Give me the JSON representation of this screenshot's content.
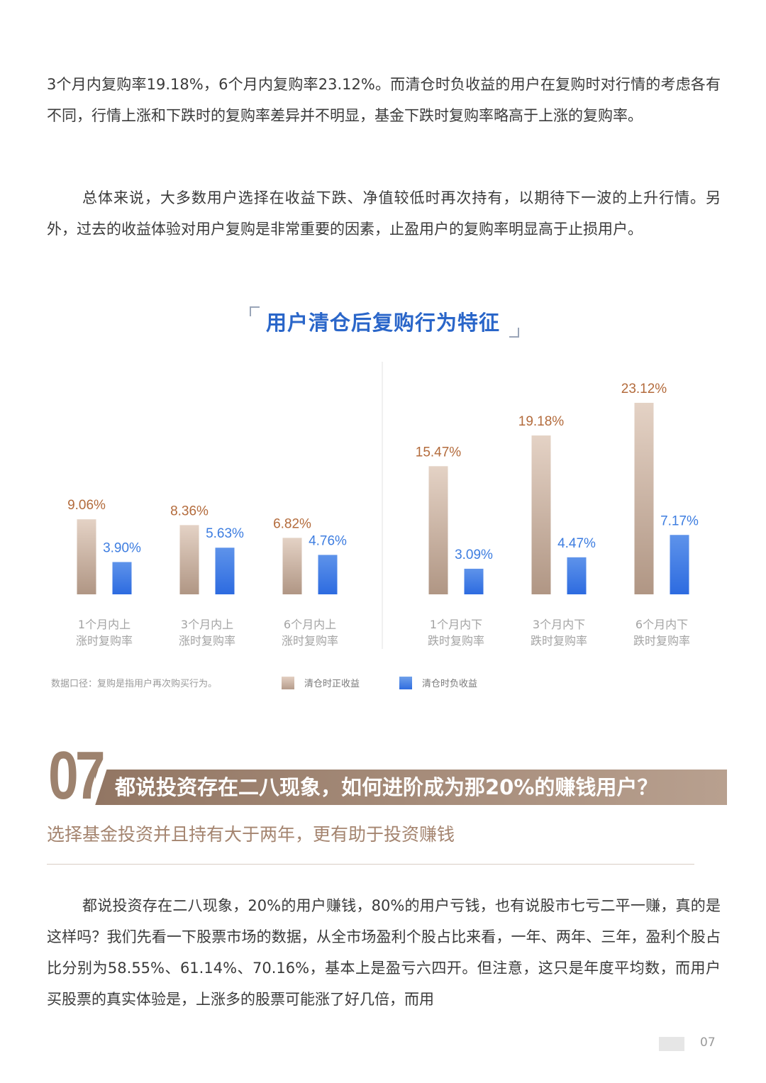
{
  "paragraphs": {
    "p1": "3个月内复购率19.18%，6个月内复购率23.12%。而清仓时负收益的用户在复购时对行情的考虑各有不同，行情上涨和下跌时的复购率差异并不明显，基金下跌时复购率略高于上涨的复购率。",
    "p2": "总体来说，大多数用户选择在收益下跌、净值较低时再次持有，以期待下一波的上升行情。另外，过去的收益体验对用户复购是非常重要的因素，止盈用户的复购率明显高于止损用户。",
    "p3": "都说投资存在二八现象，20%的用户赚钱，80%的用户亏钱，也有说股市七亏二平一赚，真的是这样吗？我们先看一下股票市场的数据，从全市场盈利个股占比来看，一年、两年、三年，盈利个股占比分别为58.55%、61.14%、70.16%，基本上是盈亏六四开。但注意，这只是年度平均数，而用户买股票的真实体验是，上涨多的股票可能涨了好几倍，而用"
  },
  "chart_data": {
    "type": "bar",
    "title": "用户清仓后复购行为特征",
    "categories": [
      [
        "1个月内上",
        "涨时复购率"
      ],
      [
        "3个月内上",
        "涨时复购率"
      ],
      [
        "6个月内上",
        "涨时复购率"
      ],
      [
        "1个月内下",
        "跌时复购率"
      ],
      [
        "3个月内下",
        "跌时复购率"
      ],
      [
        "6个月内下",
        "跌时复购率"
      ]
    ],
    "series": [
      {
        "name": "清仓时正收益",
        "values": [
          9.06,
          8.36,
          6.82,
          15.47,
          19.18,
          23.12
        ],
        "labels": [
          "9.06%",
          "8.36%",
          "6.82%",
          "15.47%",
          "19.18%",
          "23.12%"
        ]
      },
      {
        "name": "清仓时负收益",
        "values": [
          3.9,
          5.63,
          4.76,
          3.09,
          4.47,
          7.17
        ],
        "labels": [
          "3.90%",
          "5.63%",
          "4.76%",
          "3.09%",
          "4.47%",
          "7.17%"
        ]
      }
    ],
    "ylim": [
      0,
      25
    ],
    "legend": "bottom",
    "footnote": "数据口径：复购是指用户再次购买行为。",
    "colors": {
      "positive": "#c2a898",
      "negative": "#3b78e7",
      "positive_label": "#b36b3c",
      "negative_label": "#3d7de0"
    }
  },
  "section": {
    "number": "07",
    "title": "都说投资存在二八现象，如何进阶成为那20%的赚钱用户？",
    "subtitle": "选择基金投资并且持有大于两年，更有助于投资赚钱"
  },
  "page_number": "07"
}
